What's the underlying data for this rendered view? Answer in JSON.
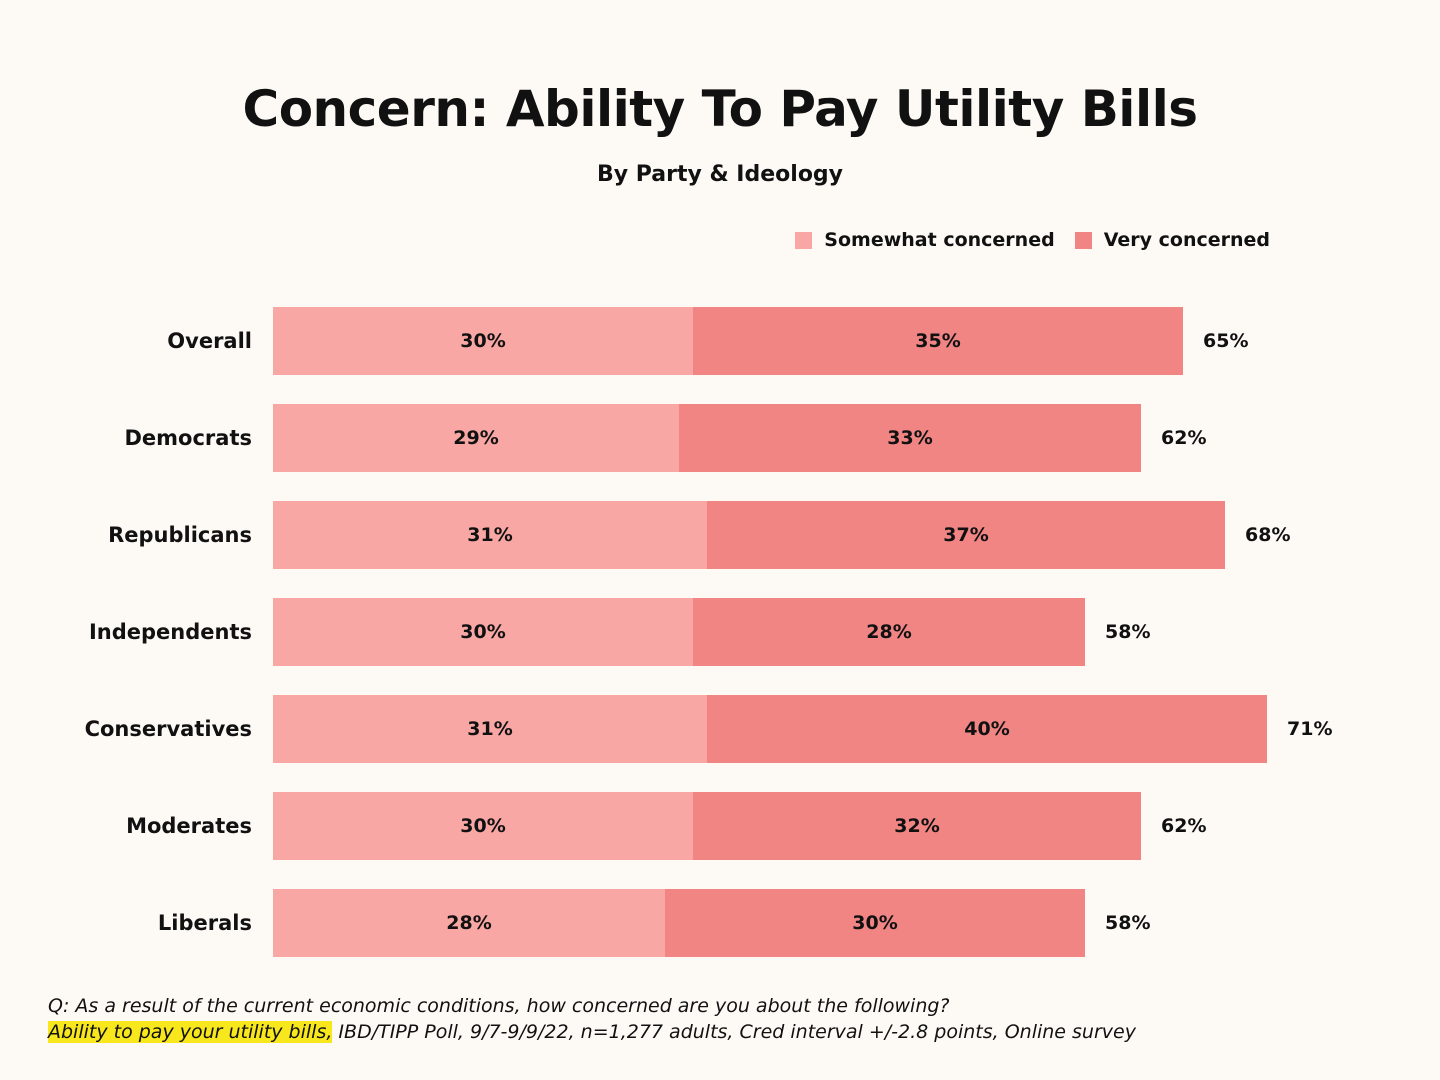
{
  "chart_data": {
    "type": "bar",
    "orientation": "horizontal",
    "stacked": true,
    "title": "Concern: Ability To Pay Utility Bills",
    "subtitle": "By Party & Ideology",
    "categories": [
      "Overall",
      "Democrats",
      "Republicans",
      "Independents",
      "Conservatives",
      "Moderates",
      "Liberals"
    ],
    "series": [
      {
        "name": "Somewhat concerned",
        "values": [
          30,
          29,
          31,
          30,
          31,
          30,
          28
        ],
        "color": "#f9a7a4"
      },
      {
        "name": "Very concerned",
        "values": [
          35,
          33,
          37,
          28,
          40,
          32,
          30
        ],
        "color": "#f08584"
      }
    ],
    "totals": [
      65,
      62,
      68,
      58,
      71,
      62,
      58
    ],
    "value_suffix": "%",
    "legend_position": "top-right",
    "grid": false
  },
  "footnote": {
    "question": "Q: As a result of the current economic conditions, how concerned are you about the following?",
    "highlight": "Ability to pay your utility bills,",
    "source": " IBD/TIPP Poll, 9/7-9/9/22, n=1,277 adults, Cred interval +/-2.8 points, Online survey"
  }
}
